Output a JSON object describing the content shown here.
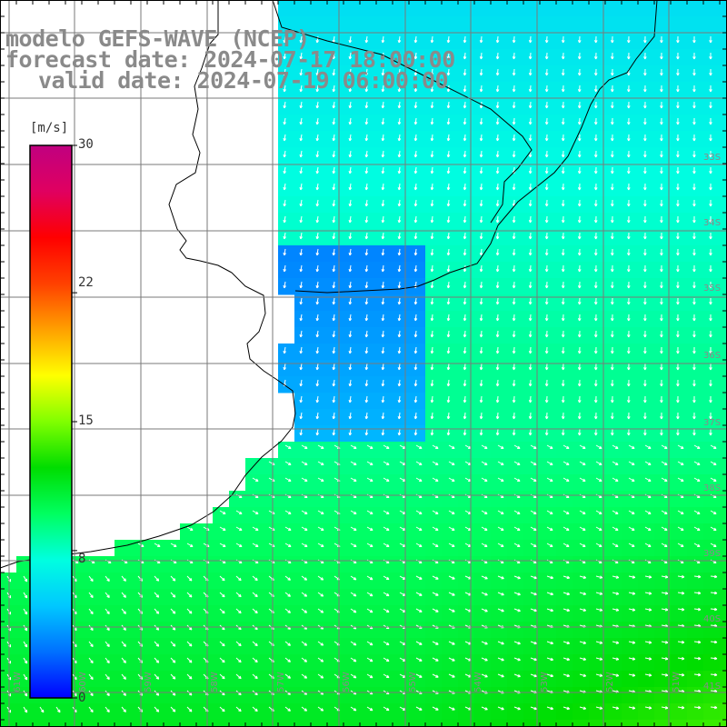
{
  "title": {
    "line1": "modelo GEFS-WAVE (NCEP)",
    "line2": "forecast date: 2024-07-17 18:00:00",
    "line3": "valid date: 2024-07-19 06:00:00"
  },
  "colorbar": {
    "unit": "[m/s]",
    "ticks": [
      "30",
      "22",
      "15",
      "8",
      "0"
    ],
    "tick_values": [
      30,
      22,
      15,
      8,
      0
    ],
    "colors": [
      "#0000ff",
      "#0070ff",
      "#00c8ff",
      "#00ffe0",
      "#00ff60",
      "#00dd00",
      "#80ff00",
      "#ffff00",
      "#ffa000",
      "#ff4000",
      "#ff0000",
      "#e00060",
      "#c00080"
    ]
  },
  "lat_labels": [
    "33S",
    "34S",
    "35S",
    "36S",
    "37S",
    "38S",
    "39S",
    "40S",
    "41S"
  ],
  "lon_labels": [
    "61W",
    "60W",
    "59W",
    "58W",
    "57W",
    "56W",
    "55W",
    "54W",
    "53W",
    "52W",
    "51W"
  ],
  "field": {
    "variable": "wind speed",
    "unit": "m/s",
    "shelf_value": 3,
    "north_value": 6,
    "central_value": 9,
    "south_value": 12
  }
}
